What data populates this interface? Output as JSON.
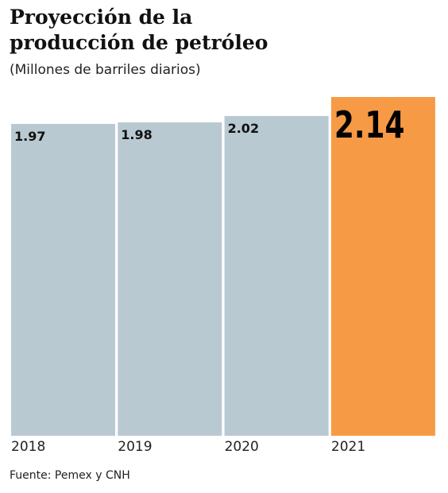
{
  "chart_data": {
    "type": "bar",
    "title": "Proyección de la producción de petróleo",
    "subtitle": "(Millones de barriles diarios)",
    "categories": [
      "2018",
      "2019",
      "2020",
      "2021"
    ],
    "values": [
      1.97,
      1.98,
      2.02,
      2.14
    ],
    "colors": [
      "#b9c9d1",
      "#b9c9d1",
      "#b9c9d1",
      "#f79a45"
    ],
    "source": "Fuente: Pemex y CNH"
  }
}
